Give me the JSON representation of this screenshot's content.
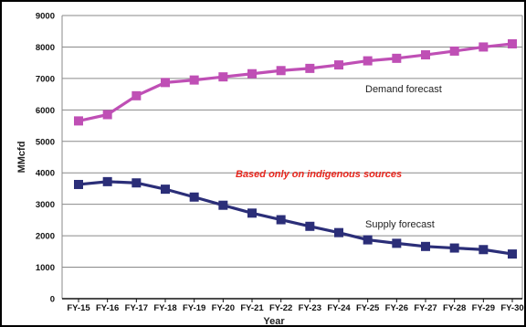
{
  "chart_data": {
    "type": "line",
    "x": [
      "FY-15",
      "FY-16",
      "FY-17",
      "FY-18",
      "FY-19",
      "FY-20",
      "FY-21",
      "FY-22",
      "FY-23",
      "FY-24",
      "FY-25",
      "FY-26",
      "FY-27",
      "FY-28",
      "FY-29",
      "FY-30"
    ],
    "xlabel": "Year",
    "ylabel": "MMcfd",
    "ylim": [
      0,
      9000
    ],
    "yticks": [
      0,
      1000,
      2000,
      3000,
      4000,
      5000,
      6000,
      7000,
      8000,
      9000
    ],
    "grid": true,
    "series": [
      {
        "name": "Demand forecast",
        "color": "#bf4fb5",
        "marker": "square",
        "values": [
          5650,
          5850,
          6450,
          6870,
          6950,
          7050,
          7150,
          7250,
          7320,
          7430,
          7560,
          7640,
          7750,
          7870,
          8000,
          8100
        ]
      },
      {
        "name": "Supply forecast",
        "color": "#2b2e78",
        "marker": "square",
        "values": [
          3630,
          3720,
          3680,
          3480,
          3230,
          2970,
          2720,
          2510,
          2300,
          2100,
          1870,
          1760,
          1660,
          1610,
          1560,
          1420
        ]
      }
    ],
    "annotations": [
      {
        "text": "Based only on indigenous sources",
        "color": "#e8261d"
      }
    ]
  }
}
